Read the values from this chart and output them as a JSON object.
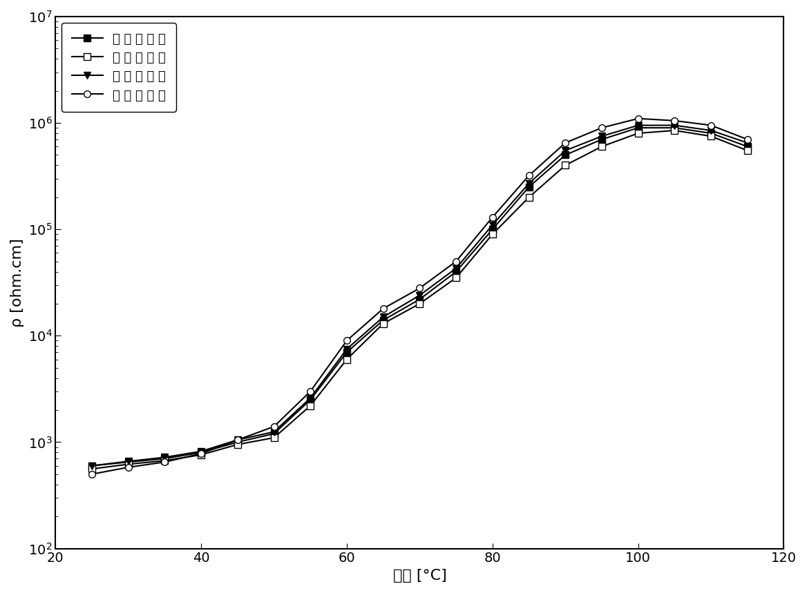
{
  "title": "",
  "xlabel": "温度 [°C]",
  "ylabel": "ρ [ohm.cm]",
  "xlim": [
    20,
    120
  ],
  "ylim_log": [
    2,
    7
  ],
  "series": [
    {
      "label": "第 一 次 加 热",
      "marker": "s",
      "marker_filled": true,
      "color": "#000000",
      "x": [
        25,
        30,
        35,
        40,
        45,
        50,
        55,
        60,
        65,
        70,
        75,
        80,
        85,
        90,
        95,
        100,
        105,
        110,
        115
      ],
      "y": [
        600,
        650,
        700,
        800,
        1000,
        1200,
        2500,
        7000,
        14000,
        22000,
        40000,
        100000,
        250000,
        500000,
        700000,
        900000,
        900000,
        800000,
        600000
      ]
    },
    {
      "label": "第 二 次 加 热",
      "marker": "s",
      "marker_filled": false,
      "color": "#000000",
      "x": [
        25,
        30,
        35,
        40,
        45,
        50,
        55,
        60,
        65,
        70,
        75,
        80,
        85,
        90,
        95,
        100,
        105,
        110,
        115
      ],
      "y": [
        560,
        620,
        670,
        760,
        950,
        1100,
        2200,
        6000,
        13000,
        20000,
        35000,
        90000,
        200000,
        400000,
        600000,
        800000,
        850000,
        750000,
        550000
      ]
    },
    {
      "label": "第 五 次 加 热",
      "marker": "v",
      "marker_filled": true,
      "color": "#000000",
      "x": [
        25,
        30,
        35,
        40,
        45,
        50,
        55,
        60,
        65,
        70,
        75,
        80,
        85,
        90,
        95,
        100,
        105,
        110,
        115
      ],
      "y": [
        600,
        660,
        720,
        820,
        1050,
        1250,
        2600,
        7500,
        15000,
        24000,
        43000,
        110000,
        270000,
        550000,
        750000,
        950000,
        950000,
        850000,
        650000
      ]
    },
    {
      "label": "第 十 次 加 热",
      "marker": "o",
      "marker_filled": false,
      "color": "#000000",
      "x": [
        25,
        30,
        35,
        40,
        45,
        50,
        55,
        60,
        65,
        70,
        75,
        80,
        85,
        90,
        95,
        100,
        105,
        110,
        115
      ],
      "y": [
        500,
        580,
        650,
        780,
        1050,
        1400,
        3000,
        9000,
        18000,
        28000,
        50000,
        130000,
        320000,
        650000,
        900000,
        1100000,
        1050000,
        950000,
        700000
      ]
    }
  ],
  "background_color": "#ffffff",
  "linewidth": 1.5,
  "markersize": 7,
  "legend_fontsize": 13,
  "axis_fontsize": 16,
  "tick_fontsize": 14
}
